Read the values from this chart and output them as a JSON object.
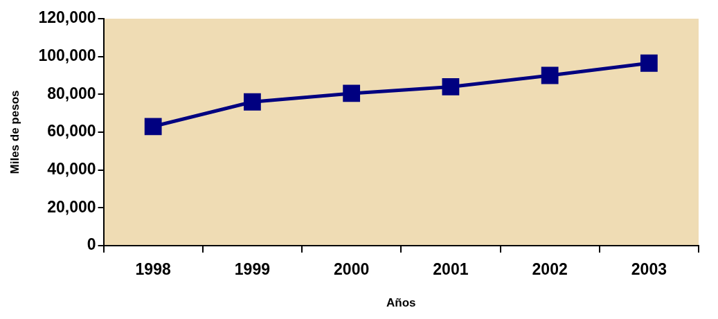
{
  "chart_data": {
    "type": "line",
    "xlabel": "Años",
    "ylabel": "Miles de pesos",
    "categories": [
      "1998",
      "1999",
      "2000",
      "2001",
      "2002",
      "2003"
    ],
    "series": [
      {
        "color": "#000080",
        "values": [
          63000,
          76000,
          80500,
          84000,
          90000,
          96500
        ]
      }
    ],
    "ylim": [
      0,
      120000
    ],
    "yticks": [
      0,
      {
        "value": 20000,
        "label": "20,000"
      },
      {
        "value": 40000,
        "label": "40,000"
      },
      {
        "value": 60000,
        "label": "60,000"
      },
      {
        "value": 80000,
        "label": "80,000"
      },
      {
        "value": 100000,
        "label": "100,000"
      },
      {
        "value": 120000,
        "label": "120,000"
      }
    ],
    "grid": false,
    "legend": false,
    "marker": "square",
    "line_style": "solid"
  }
}
